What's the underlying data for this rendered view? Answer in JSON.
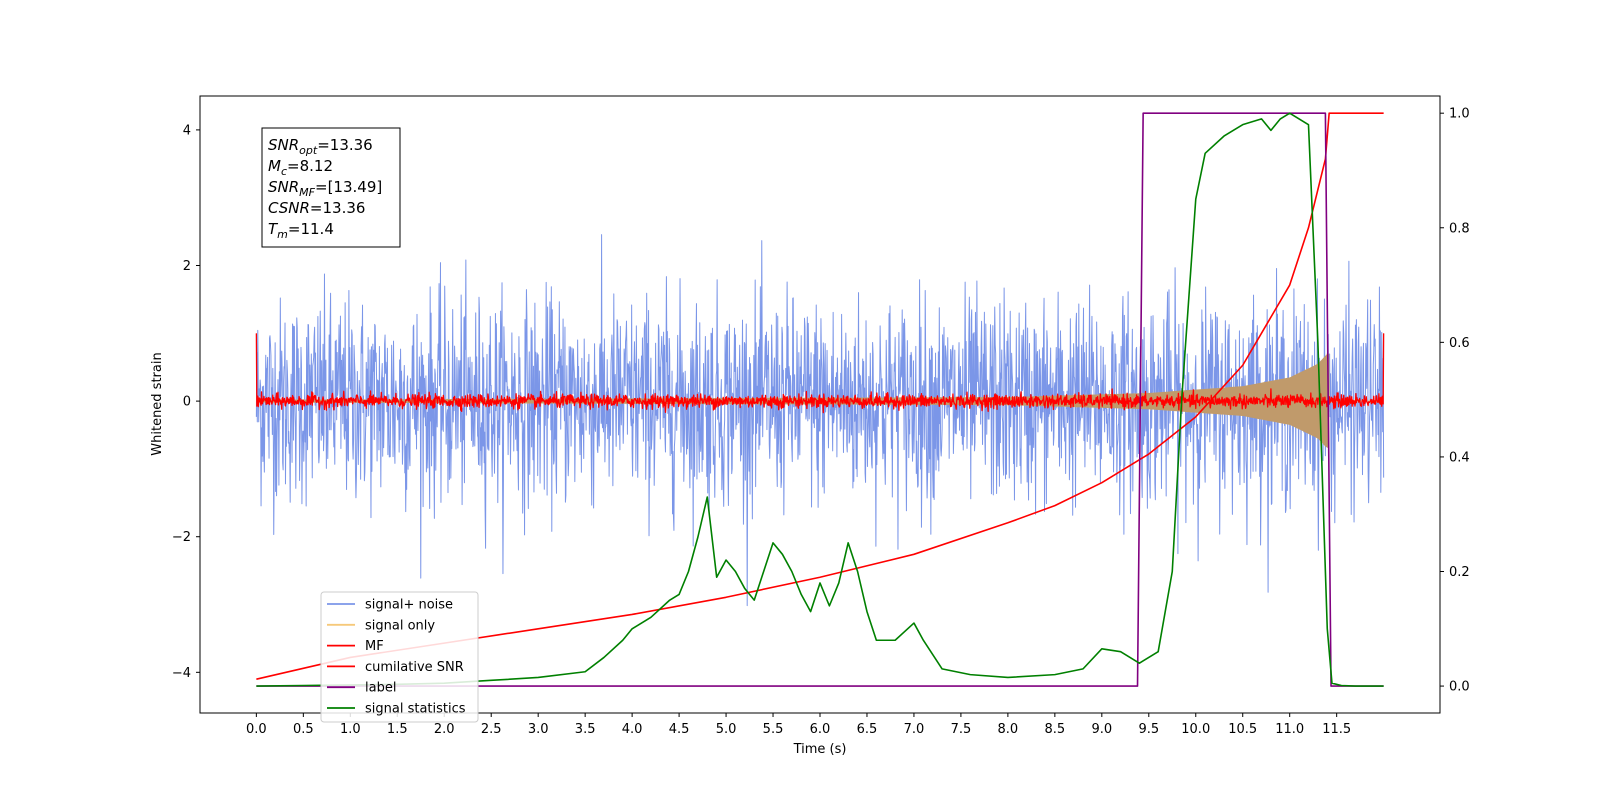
{
  "chart_data": {
    "type": "line",
    "xlabel": "Time (s)",
    "ylabel": "Whitened strain",
    "xlim": [
      -0.6,
      12.6
    ],
    "ylim": [
      -4.6,
      4.5
    ],
    "y2lim": [
      -0.047,
      1.03
    ],
    "x_ticks": [
      "0.0",
      "0.5",
      "1.0",
      "1.5",
      "2.0",
      "2.5",
      "3.0",
      "3.5",
      "4.0",
      "4.5",
      "5.0",
      "5.5",
      "6.0",
      "6.5",
      "7.0",
      "7.5",
      "8.0",
      "8.5",
      "9.0",
      "9.5",
      "10.0",
      "10.5",
      "11.0",
      "11.5"
    ],
    "y_ticks": [
      "4",
      "2",
      "0",
      "−2",
      "−4"
    ],
    "y_tick_values": [
      4,
      2,
      0,
      -2,
      -4
    ],
    "y2_ticks": [
      "1.0",
      "0.8",
      "0.6",
      "0.4",
      "0.2",
      "0.0"
    ],
    "y2_tick_values": [
      1.0,
      0.8,
      0.6,
      0.4,
      0.2,
      0.0
    ],
    "legend_position": "lower-left",
    "annotation_lines": [
      {
        "var": "SNR",
        "sub": "opt",
        "value": "=13.36"
      },
      {
        "var": "M",
        "sub": "c",
        "value": "=8.12"
      },
      {
        "var": "SNR",
        "sub": "MF",
        "value": "=[13.49]"
      },
      {
        "var": "CSNR",
        "sub": "",
        "value": "=13.36"
      },
      {
        "var": "T",
        "sub": "m",
        "value": "=11.4"
      }
    ],
    "series": [
      {
        "name": "signal+ noise",
        "color": "#7b96e8",
        "axis": "left",
        "x_range": [
          0,
          12
        ],
        "noise_amplitude": 0.75
      },
      {
        "name": "signal only",
        "color": "#f6c97a",
        "axis": "left",
        "x_range": [
          0,
          12
        ],
        "envelope": [
          [
            0.0,
            0.02
          ],
          [
            8.0,
            0.06
          ],
          [
            9.5,
            0.12
          ],
          [
            10.5,
            0.22
          ],
          [
            11.0,
            0.35
          ],
          [
            11.3,
            0.55
          ],
          [
            11.4,
            0.7
          ]
        ]
      },
      {
        "name": "MF",
        "color": "#ff0000",
        "axis": "left",
        "x_range": [
          0,
          12
        ],
        "noise_amplitude": 0.05
      },
      {
        "name": "cumilative SNR",
        "color": "#ff0000",
        "axis": "right",
        "x": [
          0.0,
          1.0,
          2.0,
          3.0,
          4.0,
          5.0,
          6.0,
          7.0,
          8.0,
          8.5,
          9.0,
          9.5,
          10.0,
          10.5,
          11.0,
          11.2,
          11.38,
          11.42,
          12.0
        ],
        "y": [
          0.012,
          0.05,
          0.075,
          0.1,
          0.125,
          0.155,
          0.19,
          0.23,
          0.285,
          0.315,
          0.355,
          0.405,
          0.47,
          0.56,
          0.7,
          0.8,
          0.92,
          1.0,
          1.0
        ]
      },
      {
        "name": "label",
        "color": "#800080",
        "axis": "right",
        "x": [
          0.0,
          9.38,
          9.44,
          11.38,
          11.44,
          12.0
        ],
        "y": [
          0.0,
          0.0,
          1.0,
          1.0,
          0.0,
          0.0
        ]
      },
      {
        "name": "signal statistics",
        "color": "#008000",
        "axis": "right",
        "x": [
          0.0,
          0.5,
          1.0,
          1.5,
          2.0,
          2.5,
          3.0,
          3.5,
          3.7,
          3.9,
          4.0,
          4.2,
          4.4,
          4.5,
          4.6,
          4.7,
          4.8,
          4.9,
          5.0,
          5.1,
          5.2,
          5.3,
          5.4,
          5.5,
          5.6,
          5.7,
          5.8,
          5.9,
          6.0,
          6.1,
          6.2,
          6.3,
          6.4,
          6.5,
          6.6,
          6.8,
          7.0,
          7.1,
          7.3,
          7.6,
          8.0,
          8.5,
          8.8,
          9.0,
          9.2,
          9.3,
          9.4,
          9.6,
          9.75,
          9.85,
          10.0,
          10.1,
          10.3,
          10.5,
          10.7,
          10.8,
          10.9,
          11.0,
          11.1,
          11.2,
          11.3,
          11.4,
          11.45,
          11.55,
          11.7,
          11.9,
          12.0
        ],
        "y": [
          0.0,
          0.001,
          0.002,
          0.003,
          0.005,
          0.01,
          0.015,
          0.025,
          0.05,
          0.08,
          0.1,
          0.12,
          0.15,
          0.16,
          0.2,
          0.26,
          0.33,
          0.19,
          0.22,
          0.2,
          0.17,
          0.15,
          0.2,
          0.25,
          0.23,
          0.2,
          0.16,
          0.13,
          0.18,
          0.14,
          0.18,
          0.25,
          0.2,
          0.13,
          0.08,
          0.08,
          0.11,
          0.08,
          0.03,
          0.02,
          0.015,
          0.02,
          0.03,
          0.065,
          0.06,
          0.05,
          0.04,
          0.06,
          0.2,
          0.5,
          0.85,
          0.93,
          0.96,
          0.98,
          0.99,
          0.97,
          0.99,
          1.0,
          0.99,
          0.98,
          0.6,
          0.1,
          0.005,
          0.001,
          0.0,
          0.0,
          0.0
        ]
      }
    ]
  }
}
